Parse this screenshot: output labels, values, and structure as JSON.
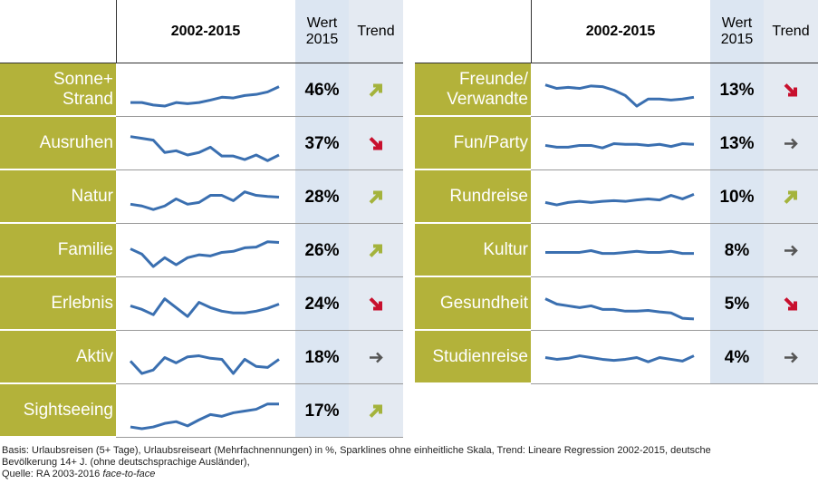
{
  "left": {
    "header": {
      "period": "2002-2015",
      "value": "Wert\n2015",
      "trend": "Trend"
    },
    "rows": [
      {
        "label": "Sonne+\nStrand",
        "value": "46%",
        "trend": "up",
        "sparkline": [
          15,
          15,
          8,
          5,
          15,
          12,
          15,
          22,
          30,
          28,
          35,
          38,
          45,
          60
        ]
      },
      {
        "label": "Ausruhen",
        "value": "37%",
        "trend": "down",
        "sparkline": [
          70,
          65,
          60,
          25,
          30,
          18,
          25,
          40,
          15,
          15,
          5,
          18,
          2,
          18
        ]
      },
      {
        "label": "Natur",
        "value": "28%",
        "trend": "up",
        "sparkline": [
          30,
          25,
          15,
          25,
          45,
          30,
          35,
          55,
          55,
          40,
          65,
          55,
          52,
          50
        ]
      },
      {
        "label": "Familie",
        "value": "26%",
        "trend": "up",
        "sparkline": [
          55,
          40,
          5,
          30,
          10,
          30,
          38,
          35,
          45,
          48,
          58,
          60,
          75,
          73
        ]
      },
      {
        "label": "Erlebnis",
        "value": "24%",
        "trend": "down",
        "sparkline": [
          45,
          35,
          20,
          65,
          40,
          15,
          55,
          40,
          30,
          25,
          25,
          30,
          38,
          50
        ]
      },
      {
        "label": "Aktiv",
        "value": "18%",
        "trend": "flat",
        "sparkline": [
          40,
          5,
          15,
          50,
          35,
          52,
          55,
          48,
          45,
          5,
          45,
          25,
          22,
          45
        ]
      },
      {
        "label": "Sightseeing",
        "value": "17%",
        "trend": "up",
        "sparkline": [
          5,
          0,
          5,
          15,
          20,
          8,
          25,
          40,
          35,
          45,
          50,
          55,
          70,
          70
        ]
      }
    ]
  },
  "right": {
    "header": {
      "period": "2002-2015",
      "value": "Wert\n2015",
      "trend": "Trend"
    },
    "rows": [
      {
        "label": "Freunde/\nVerwandte",
        "value": "13%",
        "trend": "down",
        "sparkline": [
          65,
          55,
          58,
          55,
          62,
          60,
          50,
          35,
          5,
          25,
          25,
          22,
          25,
          30
        ]
      },
      {
        "label": "Fun/Party",
        "value": "13%",
        "trend": "flat",
        "sparkline": [
          45,
          40,
          40,
          45,
          45,
          38,
          50,
          48,
          48,
          45,
          48,
          42,
          50,
          48
        ]
      },
      {
        "label": "Rundreise",
        "value": "10%",
        "trend": "up",
        "sparkline": [
          35,
          28,
          35,
          38,
          35,
          38,
          40,
          38,
          42,
          45,
          42,
          55,
          45,
          58
        ]
      },
      {
        "label": "Kultur",
        "value": "8%",
        "trend": "flat",
        "sparkline": [
          45,
          45,
          45,
          45,
          50,
          42,
          42,
          45,
          48,
          45,
          45,
          48,
          42,
          42
        ]
      },
      {
        "label": "Gesundheit",
        "value": "5%",
        "trend": "down",
        "sparkline": [
          65,
          50,
          45,
          40,
          45,
          35,
          35,
          30,
          30,
          32,
          28,
          25,
          10,
          8
        ]
      },
      {
        "label": "Studienreise",
        "value": "4%",
        "trend": "flat",
        "sparkline": [
          50,
          45,
          48,
          55,
          50,
          45,
          42,
          45,
          50,
          38,
          50,
          45,
          40,
          55
        ]
      }
    ]
  },
  "footer": [
    "Basis: Urlaubsreisen (5+ Tage), Urlaubsreiseart (Mehrfachnennungen) in %, Sparklines ohne einheitliche Skala, Trend: Lineare Regression 2002-2015, deutsche",
    "Bevölkerung 14+ J. (ohne deutschsprachige Ausländer),",
    "Quelle: RA 2003-2016 ",
    "face-to-face"
  ]
}
